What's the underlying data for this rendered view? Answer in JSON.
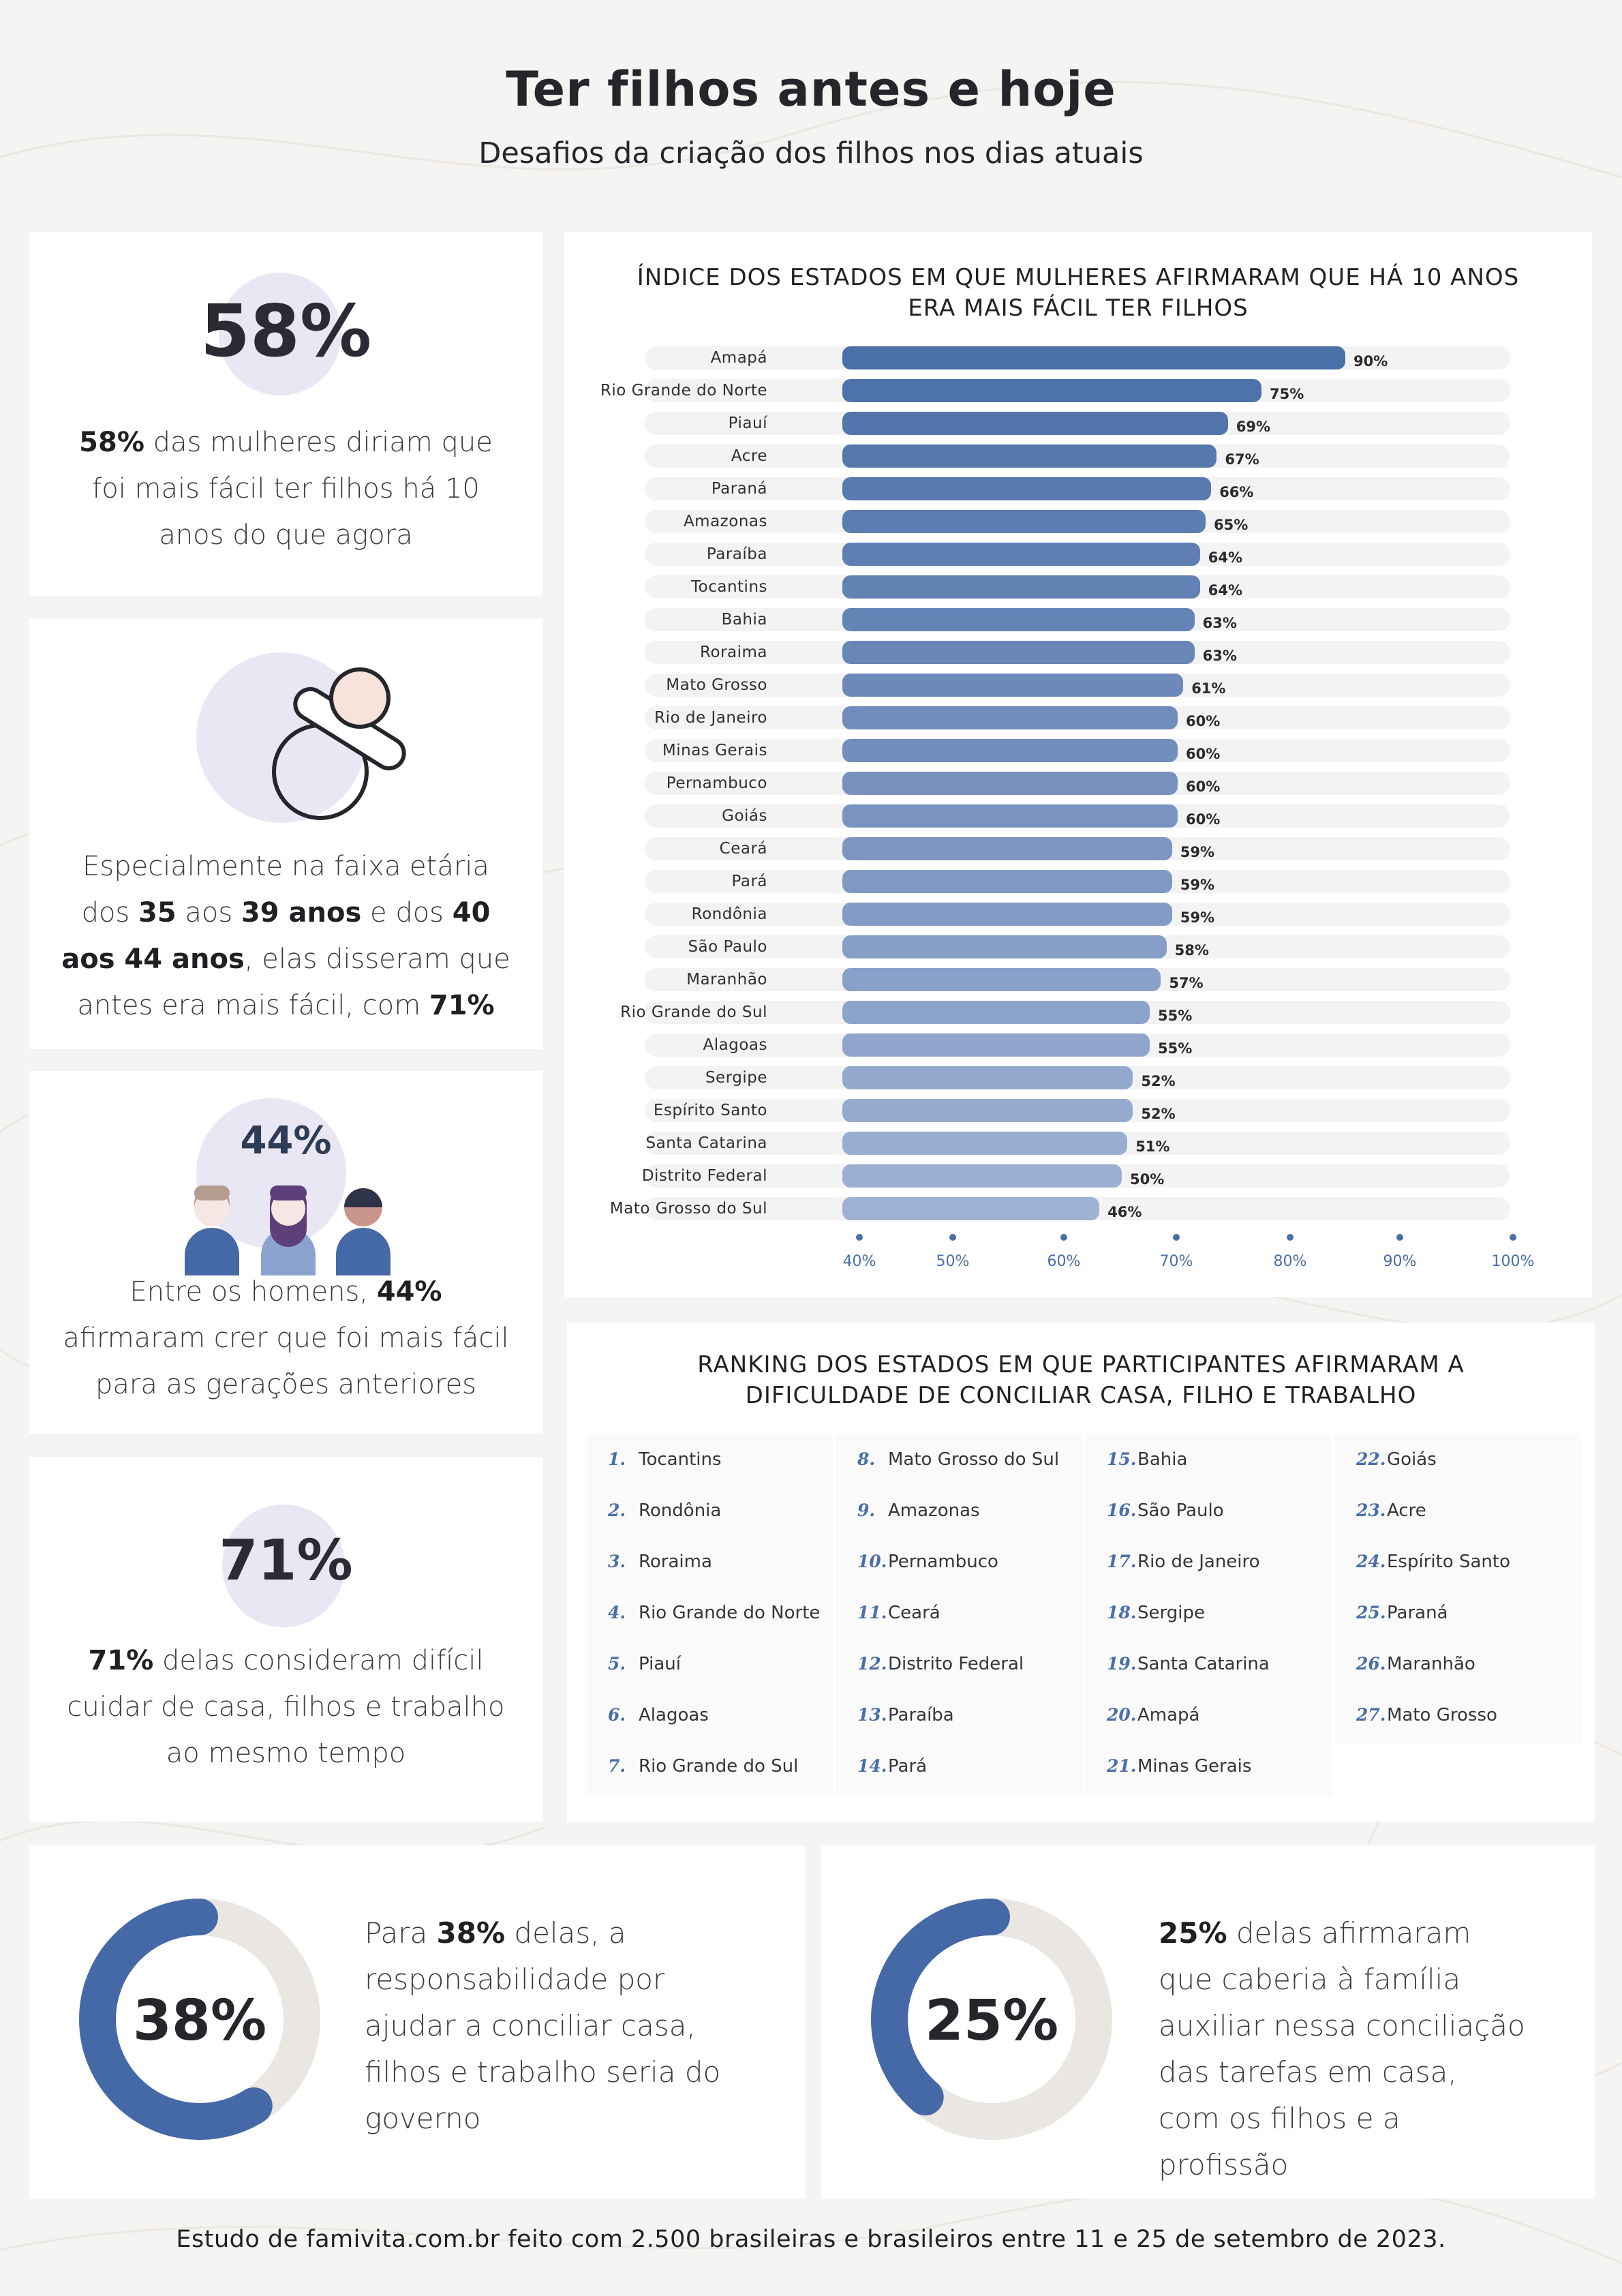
{
  "title": "Ter filhos antes e hoje",
  "subtitle": "Desafios da criação dos filhos nos dias atuais",
  "colors": {
    "accent": "#4a6ea8",
    "circle": "#e9e7f3",
    "donut_track": "#eae7e3",
    "background": "#f5f4f2"
  },
  "card1": {
    "stat": "58%",
    "text_bold": "58%",
    "text": " das mulheres diriam que foi mais fácil ter filhos há 10 anos do que agora"
  },
  "card2": {
    "icon": "pacifier-icon",
    "t1": "Especialmente na faixa etária dos ",
    "b1": "35",
    "t2": " aos ",
    "b2": "39 anos",
    "t3": " e dos ",
    "b3": "40 aos 44 anos",
    "t4": ", elas disseram que antes era mais fácil, com ",
    "b4": "71%"
  },
  "card3": {
    "stat": "44%",
    "icon": "people-icon",
    "t1": "Entre os homens, ",
    "b1": "44%",
    "t2": " afirmaram crer que foi mais fácil para as gerações anteriores"
  },
  "card4": {
    "stat": "71%",
    "text_bold": "71%",
    "text": " delas consideram difícil cuidar de casa, filhos e trabalho ao mesmo tempo"
  },
  "chart_data": {
    "type": "bar",
    "orientation": "horizontal",
    "title": "ÍNDICE DOS ESTADOS EM QUE MULHERES AFIRMARAM QUE HÁ 10 ANOS ERA MAIS FÁCIL TER FILHOS",
    "categories": [
      "Amapá",
      "Rio Grande do Norte",
      "Piauí",
      "Acre",
      "Paraná",
      "Amazonas",
      "Paraíba",
      "Tocantins",
      "Bahia",
      "Roraima",
      "Mato Grosso",
      "Rio de Janeiro",
      "Minas Gerais",
      "Pernambuco",
      "Goiás",
      "Ceará",
      "Pará",
      "Rondônia",
      "São Paulo",
      "Maranhão",
      "Rio Grande do Sul",
      "Alagoas",
      "Sergipe",
      "Espírito Santo",
      "Santa Catarina",
      "Distrito Federal",
      "Mato Grosso do Sul"
    ],
    "values": [
      90,
      75,
      69,
      67,
      66,
      65,
      64,
      64,
      63,
      63,
      61,
      60,
      60,
      60,
      60,
      59,
      59,
      59,
      58,
      57,
      55,
      55,
      52,
      52,
      51,
      50,
      46
    ],
    "value_labels": [
      "90%",
      "75%",
      "69%",
      "67%",
      "66%",
      "65%",
      "64%",
      "64%",
      "63%",
      "63%",
      "61%",
      "60%",
      "60%",
      "60%",
      "60%",
      "59%",
      "59%",
      "59%",
      "58%",
      "57%",
      "55%",
      "55%",
      "52%",
      "52%",
      "51%",
      "50%",
      "46%"
    ],
    "xlim": [
      40,
      100
    ],
    "ticks": [
      40,
      50,
      60,
      70,
      80,
      90,
      100
    ],
    "tick_labels": [
      "40%",
      "50%",
      "60%",
      "70%",
      "80%",
      "90%",
      "100%"
    ]
  },
  "ranking": {
    "title": "RANKING DOS ESTADOS EM QUE PARTICIPANTES AFIRMARAM A DIFICULDADE DE CONCILIAR CASA, FILHO E TRABALHO",
    "items": [
      {
        "n": "1.",
        "name": "Tocantins"
      },
      {
        "n": "2.",
        "name": "Rondônia"
      },
      {
        "n": "3.",
        "name": "Roraima"
      },
      {
        "n": "4.",
        "name": "Rio Grande do Norte"
      },
      {
        "n": "5.",
        "name": "Piauí"
      },
      {
        "n": "6.",
        "name": "Alagoas"
      },
      {
        "n": "7.",
        "name": "Rio Grande do Sul"
      },
      {
        "n": "8.",
        "name": "Mato Grosso do Sul"
      },
      {
        "n": "9.",
        "name": "Amazonas"
      },
      {
        "n": "10.",
        "name": "Pernambuco"
      },
      {
        "n": "11.",
        "name": "Ceará"
      },
      {
        "n": "12.",
        "name": "Distrito Federal"
      },
      {
        "n": "13.",
        "name": "Paraíba"
      },
      {
        "n": "14.",
        "name": "Pará"
      },
      {
        "n": "15.",
        "name": "Bahia"
      },
      {
        "n": "16.",
        "name": "São Paulo"
      },
      {
        "n": "17.",
        "name": "Rio de Janeiro"
      },
      {
        "n": "18.",
        "name": "Sergipe"
      },
      {
        "n": "19.",
        "name": "Santa Catarina"
      },
      {
        "n": "20.",
        "name": "Amapá"
      },
      {
        "n": "21.",
        "name": "Minas Gerais"
      },
      {
        "n": "22.",
        "name": "Goiás"
      },
      {
        "n": "23.",
        "name": "Acre"
      },
      {
        "n": "24.",
        "name": "Espírito Santo"
      },
      {
        "n": "25.",
        "name": "Paraná"
      },
      {
        "n": "26.",
        "name": "Maranhão"
      },
      {
        "n": "27.",
        "name": "Mato Grosso"
      }
    ]
  },
  "donut1": {
    "value": 38,
    "label": "38%",
    "t1": "Para ",
    "b1": "38%",
    "t2": " delas, a responsabilidade por ajudar a conciliar casa, filhos e trabalho seria do governo"
  },
  "donut2": {
    "value": 25,
    "label": "25%",
    "b1": "25%",
    "t2": " delas afirmaram que caberia à família auxiliar nessa conciliação das tarefas em casa, com os filhos e a profissão"
  },
  "footer": "Estudo de famivita.com.br feito com 2.500 brasileiras e brasileiros entre 11 e 25 de setembro de 2023."
}
